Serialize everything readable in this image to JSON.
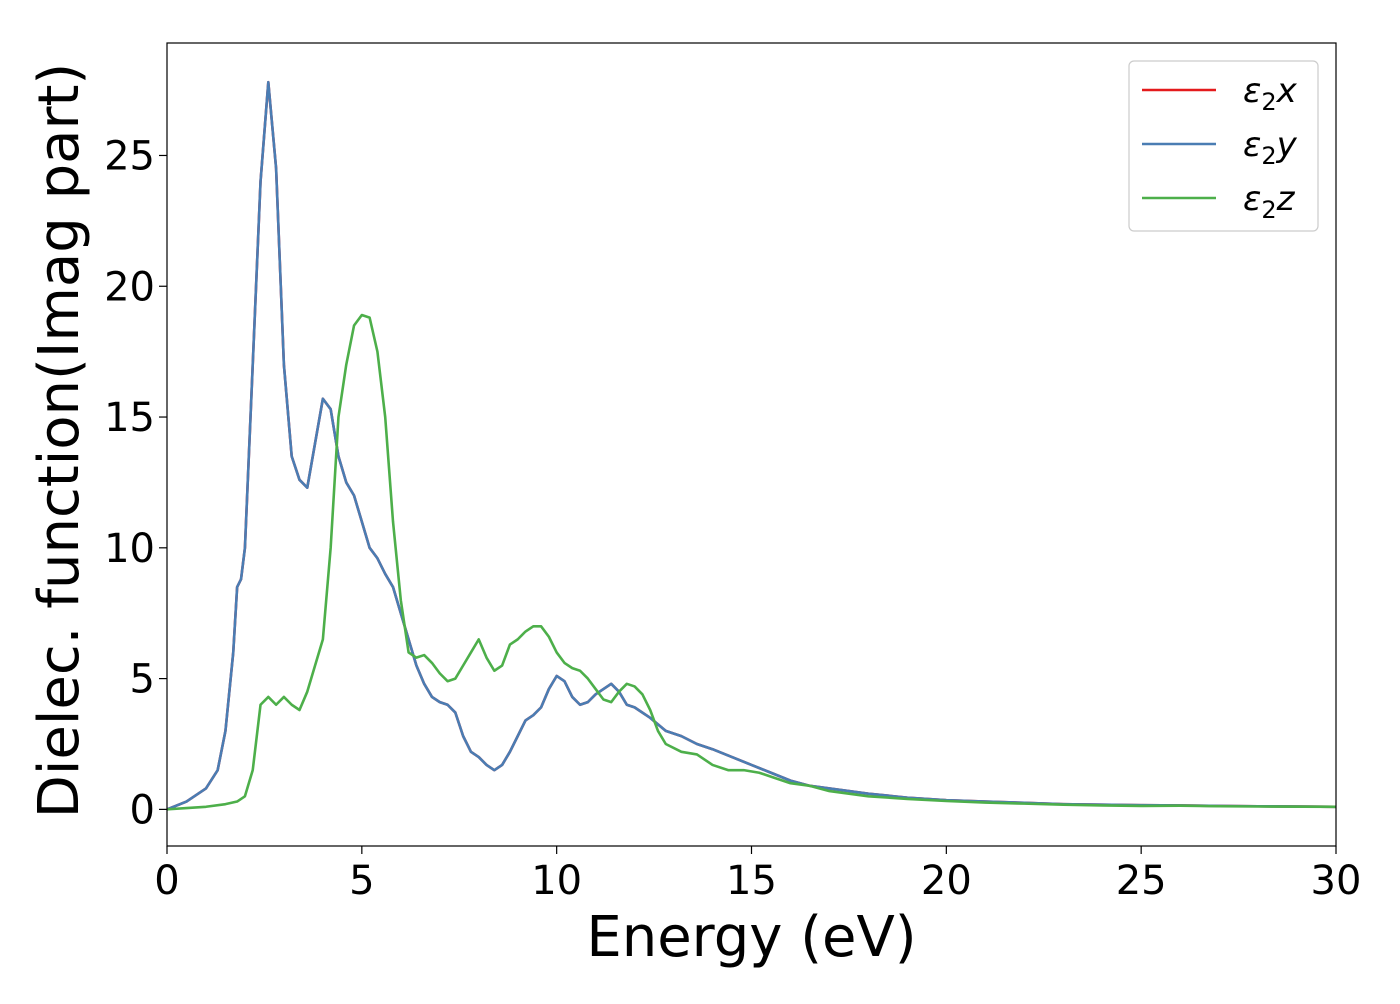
{
  "chart_data": {
    "type": "line",
    "title": "",
    "xlabel": "Energy (eV)",
    "ylabel": "Dielec. function(Imag part)",
    "xlim": [
      0,
      30
    ],
    "ylim": [
      -1.4,
      29.3
    ],
    "xticks": [
      0,
      5,
      10,
      15,
      20,
      25,
      30
    ],
    "yticks": [
      0,
      5,
      10,
      15,
      20,
      25
    ],
    "grid": false,
    "legend_position": "top-right",
    "series": [
      {
        "name": "ε₂x",
        "legend_base": "ε",
        "legend_sub": "2",
        "legend_axis": "x",
        "color": "#e41a1c",
        "x": [
          0,
          0.5,
          1.0,
          1.3,
          1.5,
          1.7,
          1.8,
          1.9,
          2.0,
          2.2,
          2.4,
          2.6,
          2.8,
          3.0,
          3.2,
          3.4,
          3.6,
          3.8,
          4.0,
          4.2,
          4.4,
          4.6,
          4.8,
          5.0,
          5.2,
          5.4,
          5.6,
          5.8,
          6.0,
          6.2,
          6.4,
          6.6,
          6.8,
          7.0,
          7.2,
          7.4,
          7.6,
          7.8,
          8.0,
          8.2,
          8.4,
          8.6,
          8.8,
          9.0,
          9.2,
          9.4,
          9.6,
          9.8,
          10.0,
          10.2,
          10.4,
          10.6,
          10.8,
          11.0,
          11.2,
          11.4,
          11.6,
          11.8,
          12.0,
          12.4,
          12.8,
          13.2,
          13.6,
          14.0,
          14.5,
          15.0,
          15.5,
          16.0,
          16.5,
          17.0,
          17.5,
          18.0,
          19.0,
          20.0,
          21.0,
          22.0,
          23.0,
          24.0,
          25.0,
          26.0,
          27.0,
          28.0,
          30.0
        ],
        "y": [
          0,
          0.3,
          0.8,
          1.5,
          3.0,
          6.0,
          8.5,
          8.8,
          10.0,
          17.0,
          24.0,
          27.8,
          24.5,
          17.0,
          13.5,
          12.6,
          12.3,
          14.0,
          15.7,
          15.3,
          13.5,
          12.5,
          12.0,
          11.0,
          10.0,
          9.6,
          9.0,
          8.5,
          7.5,
          6.5,
          5.5,
          4.8,
          4.3,
          4.1,
          4.0,
          3.7,
          2.8,
          2.2,
          2.0,
          1.7,
          1.5,
          1.7,
          2.2,
          2.8,
          3.4,
          3.6,
          3.9,
          4.6,
          5.1,
          4.9,
          4.3,
          4.0,
          4.1,
          4.4,
          4.6,
          4.8,
          4.5,
          4.0,
          3.9,
          3.5,
          3.0,
          2.8,
          2.5,
          2.3,
          2.0,
          1.7,
          1.4,
          1.1,
          0.9,
          0.8,
          0.7,
          0.6,
          0.45,
          0.35,
          0.3,
          0.25,
          0.2,
          0.18,
          0.16,
          0.15,
          0.13,
          0.12,
          0.1
        ]
      },
      {
        "name": "ε₂y",
        "legend_base": "ε",
        "legend_sub": "2",
        "legend_axis": "y",
        "color": "#4a7db3",
        "x": [
          0,
          0.5,
          1.0,
          1.3,
          1.5,
          1.7,
          1.8,
          1.9,
          2.0,
          2.2,
          2.4,
          2.6,
          2.8,
          3.0,
          3.2,
          3.4,
          3.6,
          3.8,
          4.0,
          4.2,
          4.4,
          4.6,
          4.8,
          5.0,
          5.2,
          5.4,
          5.6,
          5.8,
          6.0,
          6.2,
          6.4,
          6.6,
          6.8,
          7.0,
          7.2,
          7.4,
          7.6,
          7.8,
          8.0,
          8.2,
          8.4,
          8.6,
          8.8,
          9.0,
          9.2,
          9.4,
          9.6,
          9.8,
          10.0,
          10.2,
          10.4,
          10.6,
          10.8,
          11.0,
          11.2,
          11.4,
          11.6,
          11.8,
          12.0,
          12.4,
          12.8,
          13.2,
          13.6,
          14.0,
          14.5,
          15.0,
          15.5,
          16.0,
          16.5,
          17.0,
          17.5,
          18.0,
          19.0,
          20.0,
          21.0,
          22.0,
          23.0,
          24.0,
          25.0,
          26.0,
          27.0,
          28.0,
          30.0
        ],
        "y": [
          0,
          0.3,
          0.8,
          1.5,
          3.0,
          6.0,
          8.5,
          8.8,
          10.0,
          17.0,
          24.0,
          27.8,
          24.5,
          17.0,
          13.5,
          12.6,
          12.3,
          14.0,
          15.7,
          15.3,
          13.5,
          12.5,
          12.0,
          11.0,
          10.0,
          9.6,
          9.0,
          8.5,
          7.5,
          6.5,
          5.5,
          4.8,
          4.3,
          4.1,
          4.0,
          3.7,
          2.8,
          2.2,
          2.0,
          1.7,
          1.5,
          1.7,
          2.2,
          2.8,
          3.4,
          3.6,
          3.9,
          4.6,
          5.1,
          4.9,
          4.3,
          4.0,
          4.1,
          4.4,
          4.6,
          4.8,
          4.5,
          4.0,
          3.9,
          3.5,
          3.0,
          2.8,
          2.5,
          2.3,
          2.0,
          1.7,
          1.4,
          1.1,
          0.9,
          0.8,
          0.7,
          0.6,
          0.45,
          0.35,
          0.3,
          0.25,
          0.2,
          0.18,
          0.16,
          0.15,
          0.13,
          0.12,
          0.1
        ]
      },
      {
        "name": "ε₂z",
        "legend_base": "ε",
        "legend_sub": "2",
        "legend_axis": "z",
        "color": "#4daf4a",
        "x": [
          0,
          0.5,
          1.0,
          1.5,
          1.8,
          2.0,
          2.2,
          2.4,
          2.6,
          2.8,
          3.0,
          3.2,
          3.4,
          3.6,
          3.8,
          4.0,
          4.2,
          4.4,
          4.6,
          4.8,
          5.0,
          5.2,
          5.4,
          5.6,
          5.8,
          6.0,
          6.2,
          6.4,
          6.6,
          6.8,
          7.0,
          7.2,
          7.4,
          7.6,
          7.8,
          8.0,
          8.2,
          8.4,
          8.6,
          8.8,
          9.0,
          9.2,
          9.4,
          9.6,
          9.8,
          10.0,
          10.2,
          10.4,
          10.6,
          10.8,
          11.0,
          11.2,
          11.4,
          11.6,
          11.8,
          12.0,
          12.2,
          12.4,
          12.6,
          12.8,
          13.2,
          13.6,
          14.0,
          14.4,
          14.8,
          15.2,
          15.6,
          16.0,
          16.5,
          17.0,
          17.5,
          18.0,
          19.0,
          20.0,
          21.0,
          22.0,
          23.0,
          24.0,
          25.0,
          26.0,
          27.0,
          28.0,
          30.0
        ],
        "y": [
          0,
          0.05,
          0.1,
          0.2,
          0.3,
          0.5,
          1.5,
          4.0,
          4.3,
          4.0,
          4.3,
          4.0,
          3.8,
          4.5,
          5.5,
          6.5,
          10.0,
          15.0,
          17.0,
          18.5,
          18.9,
          18.8,
          17.5,
          15.0,
          11.0,
          8.0,
          6.0,
          5.8,
          5.9,
          5.6,
          5.2,
          4.9,
          5.0,
          5.5,
          6.0,
          6.5,
          5.8,
          5.3,
          5.5,
          6.3,
          6.5,
          6.8,
          7.0,
          7.0,
          6.6,
          6.0,
          5.6,
          5.4,
          5.3,
          5.0,
          4.6,
          4.2,
          4.1,
          4.5,
          4.8,
          4.7,
          4.4,
          3.8,
          3.0,
          2.5,
          2.2,
          2.1,
          1.7,
          1.5,
          1.5,
          1.4,
          1.2,
          1.0,
          0.9,
          0.7,
          0.6,
          0.5,
          0.4,
          0.32,
          0.26,
          0.22,
          0.18,
          0.15,
          0.13,
          0.14,
          0.12,
          0.11,
          0.1
        ]
      }
    ]
  }
}
